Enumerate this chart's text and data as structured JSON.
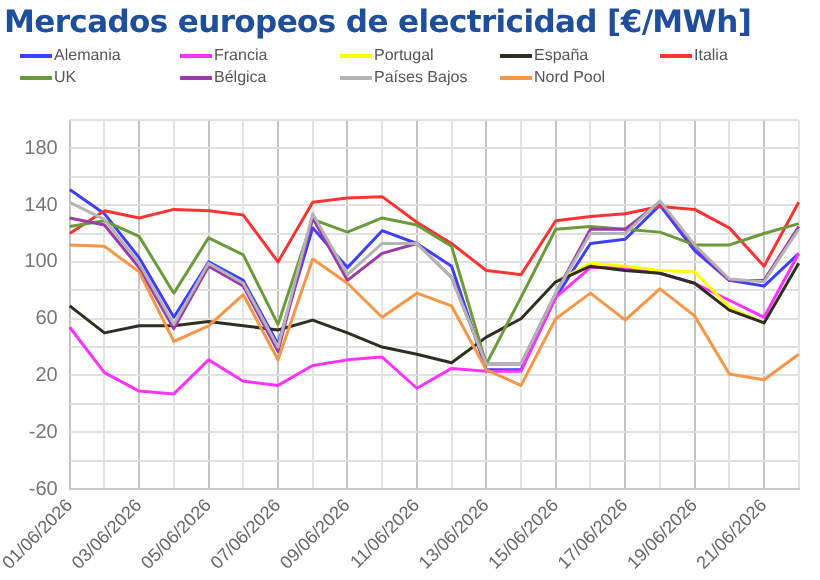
{
  "chart_data": {
    "type": "line",
    "title": "Mercados europeos de electricidad [€/MWh]",
    "categories": [
      "01/06/2026",
      null,
      "03/06/2026",
      null,
      "05/06/2026",
      null,
      "07/06/2026",
      null,
      "09/06/2026",
      null,
      "11/06/2026",
      null,
      "13/06/2026",
      null,
      "15/06/2026",
      null,
      "17/06/2026",
      null,
      "19/06/2026",
      null,
      "21/06/2026",
      null
    ],
    "series": [
      {
        "name": "Alemania",
        "color": "#3f3fff",
        "values": [
          151,
          134,
          103,
          61,
          100,
          87,
          42,
          124,
          96,
          122,
          113,
          97,
          24,
          24,
          75,
          113,
          116,
          140,
          108,
          87,
          83,
          106
        ]
      },
      {
        "name": "Francia",
        "color": "#ff33ff",
        "values": [
          54,
          22,
          9,
          7,
          31,
          16,
          13,
          27,
          31,
          33,
          11,
          25,
          23,
          23,
          75,
          96,
          96,
          92,
          85,
          73,
          61,
          106
        ]
      },
      {
        "name": "Portugal",
        "color": "#ffff00",
        "values": [
          null,
          null,
          null,
          null,
          null,
          null,
          null,
          null,
          null,
          null,
          null,
          null,
          null,
          null,
          86,
          99,
          97,
          94,
          93,
          68,
          57,
          null
        ]
      },
      {
        "name": "España",
        "color": "#2e2e22",
        "values": [
          69,
          50,
          55,
          55,
          58,
          55,
          52,
          59,
          50,
          40,
          35,
          29,
          47,
          60,
          86,
          97,
          94,
          92,
          85,
          66,
          57,
          99
        ]
      },
      {
        "name": "Italia",
        "color": "#ff3333",
        "values": [
          120,
          136,
          131,
          137,
          136,
          133,
          100,
          142,
          145,
          146,
          128,
          113,
          94,
          91,
          129,
          132,
          134,
          139,
          137,
          124,
          97,
          142
        ]
      },
      {
        "name": "UK",
        "color": "#6a9a3a",
        "values": [
          125,
          129,
          118,
          78,
          117,
          105,
          56,
          130,
          121,
          131,
          126,
          111,
          28,
          75,
          123,
          125,
          123,
          121,
          112,
          112,
          120,
          127
        ]
      },
      {
        "name": "Bélgica",
        "color": "#9b3aa8",
        "values": [
          131,
          126,
          96,
          53,
          97,
          83,
          37,
          131,
          87,
          106,
          113,
          89,
          28,
          28,
          78,
          123,
          123,
          142,
          111,
          87,
          87,
          125
        ]
      },
      {
        "name": "Países Bajos",
        "color": "#b4b4b4",
        "values": [
          142,
          130,
          99,
          56,
          99,
          85,
          40,
          134,
          91,
          113,
          113,
          89,
          28,
          28,
          78,
          120,
          120,
          143,
          112,
          88,
          86,
          123
        ]
      },
      {
        "name": "Nord Pool",
        "color": "#f79646",
        "values": [
          112,
          111,
          93,
          44,
          55,
          77,
          31,
          102,
          85,
          61,
          78,
          69,
          24,
          13,
          60,
          78,
          59,
          81,
          62,
          21,
          17,
          35
        ]
      }
    ],
    "ylim": [
      -60,
      200
    ],
    "yticks": [
      -60,
      {
        "value": -40,
        "label": null
      },
      -20,
      {
        "value": 0,
        "label": null
      },
      20,
      {
        "value": 40,
        "label": null
      },
      60,
      {
        "value": 80,
        "label": null
      },
      100,
      {
        "value": 120,
        "label": null
      },
      140,
      {
        "value": 160,
        "label": null
      },
      180,
      {
        "value": 200,
        "label": null
      }
    ],
    "grid": true,
    "legend": "top",
    "marker": "none",
    "line_style": "solid"
  }
}
